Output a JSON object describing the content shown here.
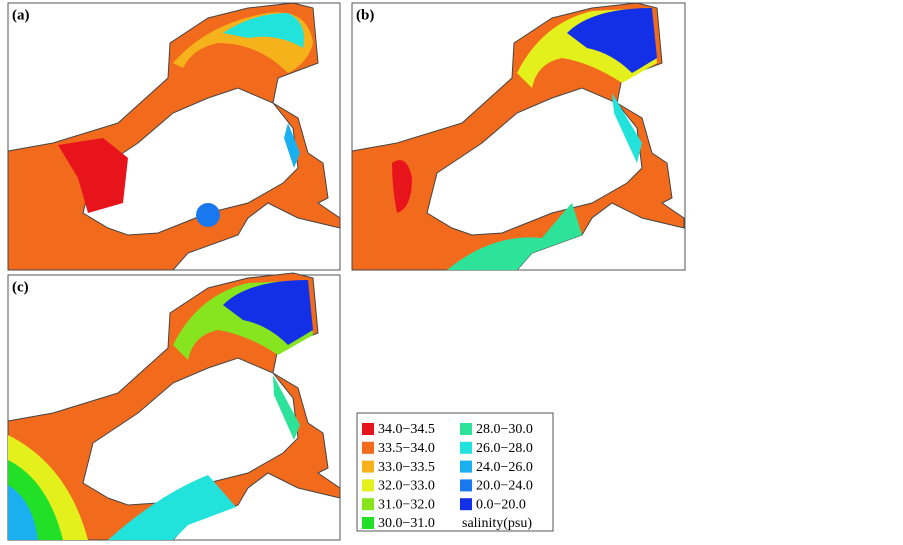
{
  "panels": [
    {
      "label": "(a)"
    },
    {
      "label": "(b)"
    },
    {
      "label": "(c)"
    }
  ],
  "legend": {
    "title": "salinity(psu)",
    "items": [
      {
        "label": "34.0−34.5",
        "color": "#e8141c"
      },
      {
        "label": "33.5−34.0",
        "color": "#f26a1b"
      },
      {
        "label": "33.0−33.5",
        "color": "#f6b21a"
      },
      {
        "label": "32.0−33.0",
        "color": "#e4f01c"
      },
      {
        "label": "31.0−32.0",
        "color": "#86e51e"
      },
      {
        "label": "30.0−31.0",
        "color": "#22e028"
      },
      {
        "label": "28.0−30.0",
        "color": "#2de39a"
      },
      {
        "label": "26.0−28.0",
        "color": "#22e2dc"
      },
      {
        "label": "24.0−26.0",
        "color": "#1ab0ef"
      },
      {
        "label": "20.0−24.0",
        "color": "#1a78ef"
      },
      {
        "label": "0.0−20.0",
        "color": "#1430e6"
      }
    ]
  }
}
